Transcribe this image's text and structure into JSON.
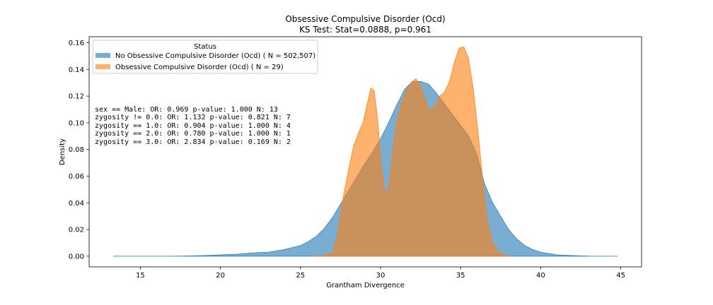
{
  "chart_data": {
    "type": "area",
    "title": "Obsessive Compulsive Disorder (Ocd)",
    "subtitle": "KS Test: Stat=0.0888, p=0.961",
    "xlabel": "Grantham Divergence",
    "ylabel": "Density",
    "xlim": [
      11.8,
      46.3
    ],
    "ylim": [
      -0.008,
      0.1645
    ],
    "xticks": [
      15,
      20,
      25,
      30,
      35,
      40,
      45
    ],
    "yticks": [
      0.0,
      0.02,
      0.04,
      0.06,
      0.08,
      0.1,
      0.12,
      0.14,
      0.16
    ],
    "grid": false,
    "legend": {
      "title": "Status",
      "placement": "top-left",
      "entries": [
        "No Obsessive Compulsive Disorder (Ocd) ( N = 502,507)",
        "Obsessive Compulsive Disorder (Ocd) ( N = 29)"
      ]
    },
    "annotations": [
      "sex == Male: OR: 0.969 p-value: 1.000 N: 13",
      "zygosity != 0.0: OR: 1.132 p-value: 0.821 N: 7",
      "zygosity == 1.0: OR: 0.904 p-value: 1.000 N: 4",
      "zygosity == 2.0: OR: 0.780 p-value: 1.000 N: 1",
      "zygosity == 3.0: OR: 2.834 p-value: 0.169 N: 2"
    ],
    "series": [
      {
        "name": "No Obsessive Compulsive Disorder (Ocd) ( N = 502,507)",
        "color": "#1f77b4",
        "x": [
          13.3,
          15,
          17,
          18,
          19,
          20,
          21,
          22,
          23,
          24,
          25,
          25.5,
          26,
          26.5,
          27,
          27.5,
          28,
          28.5,
          29,
          29.5,
          30,
          30.5,
          31,
          31.5,
          32,
          32.5,
          33,
          33.5,
          34,
          34.5,
          35,
          35.5,
          36,
          36.5,
          37,
          37.5,
          38,
          38.5,
          39,
          39.5,
          40,
          41,
          42,
          43,
          44.8
        ],
        "y": [
          0.0,
          0.0,
          0.0,
          0.0002,
          0.0005,
          0.001,
          0.0015,
          0.0025,
          0.003,
          0.005,
          0.008,
          0.011,
          0.015,
          0.021,
          0.029,
          0.039,
          0.049,
          0.059,
          0.069,
          0.078,
          0.088,
          0.1,
          0.113,
          0.125,
          0.131,
          0.131,
          0.129,
          0.122,
          0.114,
          0.106,
          0.098,
          0.09,
          0.077,
          0.054,
          0.04,
          0.03,
          0.02,
          0.013,
          0.008,
          0.005,
          0.003,
          0.001,
          0.0005,
          0.0001,
          0.0
        ]
      },
      {
        "name": "Obsessive Compulsive Disorder (Ocd) ( N = 29)",
        "color": "#ff7f0e",
        "x": [
          25.6,
          26.0,
          26.5,
          27.0,
          27.3,
          27.6,
          28.0,
          28.3,
          28.6,
          28.9,
          29.2,
          29.4,
          29.6,
          29.8,
          30.0,
          30.2,
          30.4,
          30.6,
          30.8,
          31.0,
          31.3,
          31.6,
          31.9,
          32.2,
          32.5,
          32.8,
          33.1,
          33.4,
          33.7,
          34.0,
          34.3,
          34.6,
          34.9,
          35.2,
          35.5,
          35.8,
          36.1,
          36.4,
          36.7,
          37.0,
          37.4,
          37.8,
          38.2
        ],
        "y": [
          0.0,
          0.0,
          0.0003,
          0.003,
          0.015,
          0.04,
          0.065,
          0.082,
          0.092,
          0.1,
          0.116,
          0.126,
          0.124,
          0.105,
          0.076,
          0.052,
          0.046,
          0.06,
          0.083,
          0.1,
          0.115,
          0.124,
          0.13,
          0.133,
          0.128,
          0.117,
          0.109,
          0.113,
          0.12,
          0.123,
          0.131,
          0.145,
          0.156,
          0.157,
          0.148,
          0.125,
          0.092,
          0.055,
          0.025,
          0.01,
          0.003,
          0.0005,
          0.0
        ]
      }
    ]
  }
}
